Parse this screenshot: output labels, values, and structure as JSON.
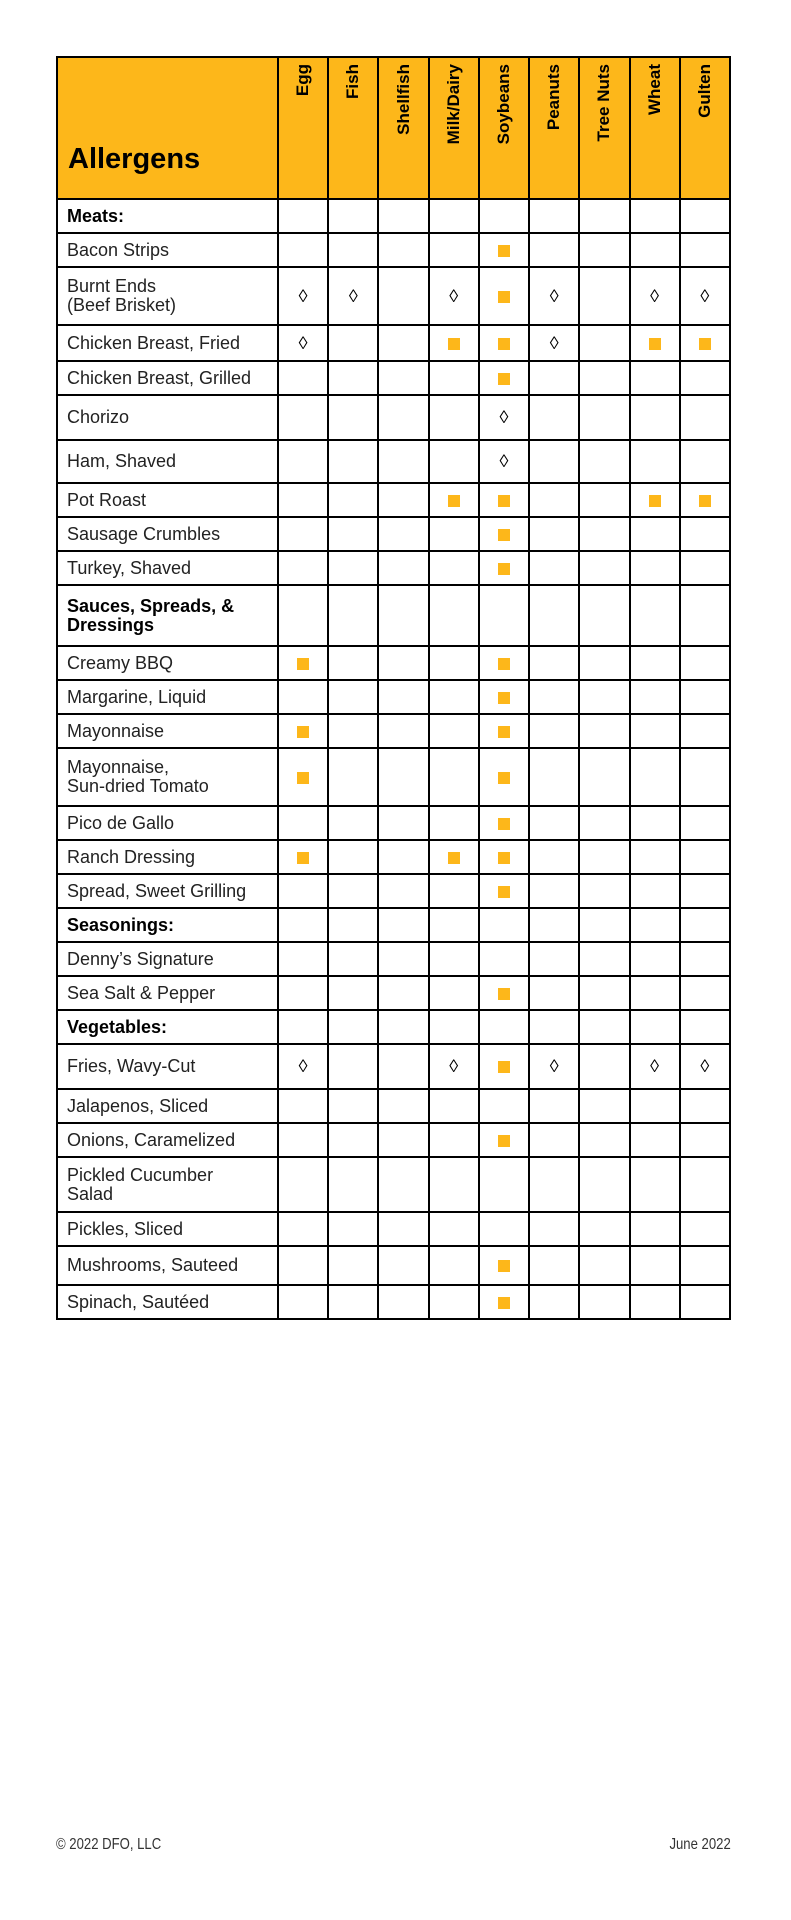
{
  "table": {
    "title": "Allergens",
    "allergens": [
      "Egg",
      "Fish",
      "Shellfish",
      "Milk/Dairy",
      "Soybeans",
      "Peanuts",
      "Tree Nuts",
      "Wheat",
      "Gulten"
    ],
    "rows": [
      {
        "name": "Meats:",
        "section": true,
        "marks": [
          "",
          "",
          "",
          "",
          "",
          "",
          "",
          "",
          ""
        ]
      },
      {
        "name": "Bacon Strips",
        "marks": [
          "",
          "",
          "",
          "",
          "square",
          "",
          "",
          "",
          ""
        ]
      },
      {
        "name": "Burnt Ends\n(Beef Brisket)",
        "marks": [
          "diamond",
          "diamond",
          "",
          "diamond",
          "square",
          "diamond",
          "",
          "diamond",
          "diamond"
        ]
      },
      {
        "name": "Chicken Breast, Fried",
        "marks": [
          "diamond",
          "",
          "",
          "square",
          "square",
          "diamond",
          "",
          "square",
          "square"
        ]
      },
      {
        "name": "Chicken Breast, Grilled",
        "marks": [
          "",
          "",
          "",
          "",
          "square",
          "",
          "",
          "",
          ""
        ]
      },
      {
        "name": "Chorizo",
        "marks": [
          "",
          "",
          "",
          "",
          "diamond",
          "",
          "",
          "",
          ""
        ]
      },
      {
        "name": "Ham, Shaved",
        "marks": [
          "",
          "",
          "",
          "",
          "diamond",
          "",
          "",
          "",
          ""
        ]
      },
      {
        "name": "Pot Roast",
        "marks": [
          "",
          "",
          "",
          "square",
          "square",
          "",
          "",
          "square",
          "square"
        ]
      },
      {
        "name": "Sausage Crumbles",
        "marks": [
          "",
          "",
          "",
          "",
          "square",
          "",
          "",
          "",
          ""
        ]
      },
      {
        "name": "Turkey, Shaved",
        "marks": [
          "",
          "",
          "",
          "",
          "square",
          "",
          "",
          "",
          ""
        ]
      },
      {
        "name": "Sauces, Spreads, &\nDressings",
        "section": true,
        "marks": [
          "",
          "",
          "",
          "",
          "",
          "",
          "",
          "",
          ""
        ]
      },
      {
        "name": "Creamy BBQ",
        "marks": [
          "square",
          "",
          "",
          "",
          "square",
          "",
          "",
          "",
          ""
        ]
      },
      {
        "name": "Margarine, Liquid",
        "marks": [
          "",
          "",
          "",
          "",
          "square",
          "",
          "",
          "",
          ""
        ]
      },
      {
        "name": "Mayonnaise",
        "marks": [
          "square",
          "",
          "",
          "",
          "square",
          "",
          "",
          "",
          ""
        ]
      },
      {
        "name": "Mayonnaise,\nSun-dried Tomato",
        "marks": [
          "square",
          "",
          "",
          "",
          "square",
          "",
          "",
          "",
          ""
        ]
      },
      {
        "name": "Pico de Gallo",
        "marks": [
          "",
          "",
          "",
          "",
          "square",
          "",
          "",
          "",
          ""
        ]
      },
      {
        "name": "Ranch Dressing",
        "marks": [
          "square",
          "",
          "",
          "square",
          "square",
          "",
          "",
          "",
          ""
        ]
      },
      {
        "name": "Spread, Sweet Grilling",
        "marks": [
          "",
          "",
          "",
          "",
          "square",
          "",
          "",
          "",
          ""
        ]
      },
      {
        "name": "Seasonings:",
        "section": true,
        "marks": [
          "",
          "",
          "",
          "",
          "",
          "",
          "",
          "",
          ""
        ]
      },
      {
        "name": "Denny’s Signature",
        "marks": [
          "",
          "",
          "",
          "",
          "",
          "",
          "",
          "",
          ""
        ]
      },
      {
        "name": "Sea Salt & Pepper",
        "marks": [
          "",
          "",
          "",
          "",
          "square",
          "",
          "",
          "",
          ""
        ]
      },
      {
        "name": "Vegetables:",
        "section": true,
        "marks": [
          "",
          "",
          "",
          "",
          "",
          "",
          "",
          "",
          ""
        ]
      },
      {
        "name": "Fries, Wavy-Cut",
        "marks": [
          "diamond",
          "",
          "",
          "diamond",
          "square",
          "diamond",
          "",
          "diamond",
          "diamond"
        ]
      },
      {
        "name": "Jalapenos, Sliced",
        "marks": [
          "",
          "",
          "",
          "",
          "",
          "",
          "",
          "",
          ""
        ]
      },
      {
        "name": "Onions, Caramelized",
        "marks": [
          "",
          "",
          "",
          "",
          "square",
          "",
          "",
          "",
          ""
        ]
      },
      {
        "name": "Pickled Cucumber\nSalad",
        "marks": [
          "",
          "",
          "",
          "",
          "",
          "",
          "",
          "",
          ""
        ]
      },
      {
        "name": "Pickles, Sliced",
        "marks": [
          "",
          "",
          "",
          "",
          "",
          "",
          "",
          "",
          ""
        ]
      },
      {
        "name": "Mushrooms, Sauteed",
        "marks": [
          "",
          "",
          "",
          "",
          "square",
          "",
          "",
          "",
          ""
        ]
      },
      {
        "name": "Spinach, Sautéed",
        "marks": [
          "",
          "",
          "",
          "",
          "square",
          "",
          "",
          "",
          ""
        ]
      }
    ],
    "mark_symbols": {
      "diamond": "◊"
    },
    "mark_color": "#FDB71A"
  },
  "footer": {
    "copyright": "© 2022 DFO, LLC",
    "date": "June 2022"
  }
}
